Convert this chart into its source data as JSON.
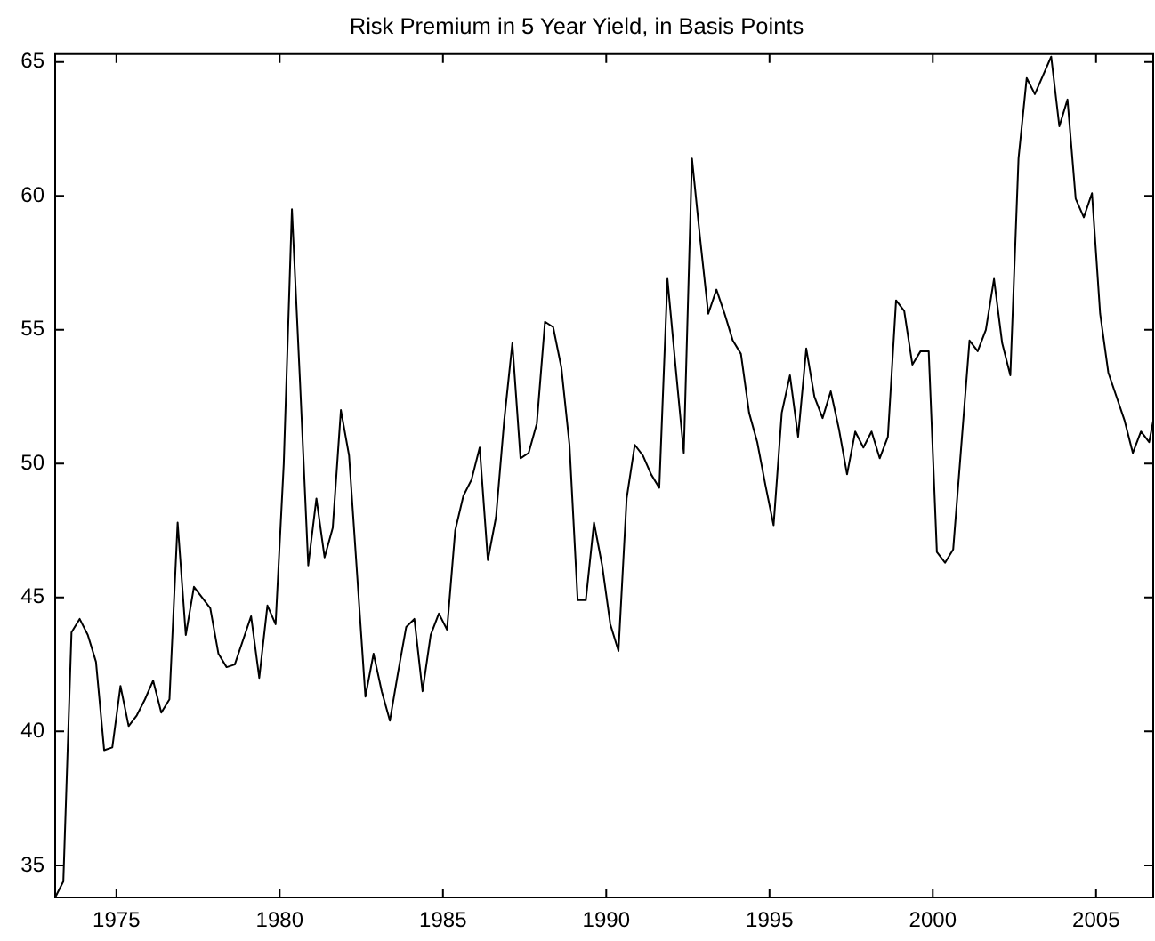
{
  "chart_data": {
    "type": "line",
    "title": "Risk Premium in 5 Year Yield, in Basis Points",
    "x": [
      1973.125,
      1973.375,
      1973.625,
      1973.875,
      1974.125,
      1974.375,
      1974.625,
      1974.875,
      1975.125,
      1975.375,
      1975.625,
      1975.875,
      1976.125,
      1976.375,
      1976.625,
      1976.875,
      1977.125,
      1977.375,
      1977.625,
      1977.875,
      1978.125,
      1978.375,
      1978.625,
      1978.875,
      1979.125,
      1979.375,
      1979.625,
      1979.875,
      1980.125,
      1980.375,
      1980.625,
      1980.875,
      1981.125,
      1981.375,
      1981.625,
      1981.875,
      1982.125,
      1982.375,
      1982.625,
      1982.875,
      1983.125,
      1983.375,
      1983.625,
      1983.875,
      1984.125,
      1984.375,
      1984.625,
      1984.875,
      1985.125,
      1985.375,
      1985.625,
      1985.875,
      1986.125,
      1986.375,
      1986.625,
      1986.875,
      1987.125,
      1987.375,
      1987.625,
      1987.875,
      1988.125,
      1988.375,
      1988.625,
      1988.875,
      1989.125,
      1989.375,
      1989.625,
      1989.875,
      1990.125,
      1990.375,
      1990.625,
      1990.875,
      1991.125,
      1991.375,
      1991.625,
      1991.875,
      1992.125,
      1992.375,
      1992.625,
      1992.875,
      1993.125,
      1993.375,
      1993.625,
      1993.875,
      1994.125,
      1994.375,
      1994.625,
      1994.875,
      1995.125,
      1995.375,
      1995.625,
      1995.875,
      1996.125,
      1996.375,
      1996.625,
      1996.875,
      1997.125,
      1997.375,
      1997.625,
      1997.875,
      1998.125,
      1998.375,
      1998.625,
      1998.875,
      1999.125,
      1999.375,
      1999.625,
      1999.875,
      2000.125,
      2000.375,
      2000.625,
      2000.875,
      2001.125,
      2001.375,
      2001.625,
      2001.875,
      2002.125,
      2002.375,
      2002.625,
      2002.875,
      2003.125,
      2003.375,
      2003.625,
      2003.875,
      2004.125,
      2004.375,
      2004.625,
      2004.875,
      2005.125,
      2005.375,
      2005.625,
      2005.875,
      2006.125,
      2006.375,
      2006.625,
      2006.75
    ],
    "series": [
      {
        "color": "#000000",
        "values": [
          33.8,
          34.4,
          43.7,
          44.2,
          43.6,
          42.6,
          39.3,
          39.4,
          41.7,
          40.2,
          40.6,
          41.2,
          41.9,
          40.7,
          41.2,
          47.8,
          43.6,
          45.4,
          45.0,
          44.6,
          42.9,
          42.4,
          42.5,
          43.4,
          44.3,
          42.0,
          44.7,
          44.0,
          50.0,
          59.5,
          53.0,
          46.2,
          48.7,
          46.5,
          47.6,
          52.0,
          50.3,
          45.8,
          41.3,
          42.9,
          41.5,
          40.4,
          42.2,
          43.9,
          44.2,
          41.5,
          43.6,
          44.4,
          43.8,
          47.5,
          48.8,
          49.4,
          50.6,
          46.4,
          48.0,
          51.6,
          54.5,
          50.2,
          50.4,
          51.5,
          55.3,
          55.1,
          53.6,
          50.7,
          44.9,
          44.9,
          47.8,
          46.2,
          44.0,
          43.0,
          48.7,
          50.7,
          50.3,
          49.6,
          49.1,
          56.9,
          53.6,
          50.4,
          61.4,
          58.4,
          55.6,
          56.5,
          55.6,
          54.6,
          54.1,
          51.9,
          50.8,
          49.2,
          47.7,
          51.9,
          53.3,
          51.0,
          54.3,
          52.5,
          51.7,
          52.7,
          51.3,
          49.6,
          51.2,
          50.6,
          51.2,
          50.2,
          51.0,
          56.1,
          55.7,
          53.7,
          54.2,
          54.2,
          46.7,
          46.3,
          46.8,
          50.7,
          54.6,
          54.2,
          55.0,
          56.9,
          54.5,
          53.3,
          61.4,
          64.4,
          63.8,
          64.5,
          65.2,
          62.6,
          63.6,
          59.9,
          59.2,
          60.1,
          55.6,
          53.4,
          52.5,
          51.6,
          50.4,
          51.2,
          50.8,
          51.6
        ]
      }
    ],
    "xlim": [
      1973.125,
      2006.75
    ],
    "ylim": [
      33.8,
      65.3
    ],
    "xticks": [
      1975,
      1980,
      1985,
      1990,
      1995,
      2000,
      2005
    ],
    "yticks": [
      35,
      40,
      45,
      50,
      55,
      60,
      65
    ]
  }
}
